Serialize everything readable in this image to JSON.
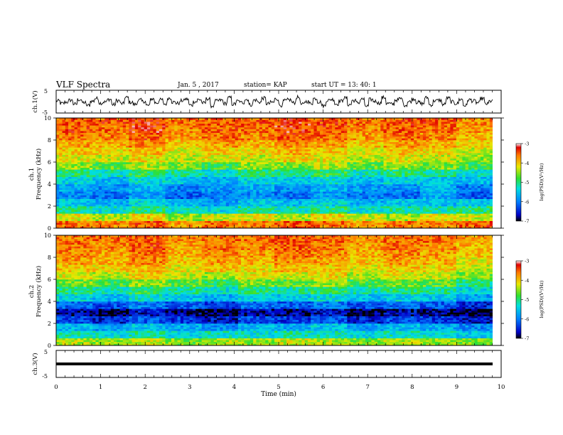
{
  "header": {
    "title": "VLF Spectra",
    "date": "Jan. 5 , 2017",
    "station": "station= KAP",
    "start": "start  UT =   13: 40: 1"
  },
  "colorbar": {
    "label": "log(PSD)(V²/Hz)",
    "ticks": [
      "-3",
      "-4",
      "-5",
      "-6",
      "-7"
    ]
  },
  "chart_data": [
    {
      "type": "line",
      "name": "ch1-waveform",
      "ylabel": "ch.1(V)",
      "ylim": [
        -5,
        5
      ],
      "yticks": [
        "5",
        "-5"
      ],
      "xlim": [
        0,
        10
      ],
      "x_unit": "min",
      "stroke": "#000000",
      "samples": [
        0.3,
        -0.8,
        -0.2,
        0.6,
        -1.1,
        0.9,
        -0.4,
        -1.6,
        0.2,
        1.4,
        -0.6,
        -0.1,
        1.0,
        -1.3,
        0.5,
        -0.9,
        1.8,
        -0.3,
        -1.2,
        0.7,
        0.1,
        -1.7,
        1.2,
        -0.5,
        0.8,
        -1.0,
        1.6,
        -0.2,
        -0.7,
        0.4,
        1.1,
        -1.5,
        0.0,
        0.9,
        -0.6,
        1.3,
        -1.9,
        0.3,
        0.6,
        -0.8,
        1.7,
        -1.1,
        0.2,
        -0.4,
        1.0,
        -1.4,
        0.7,
        -0.2,
        1.5,
        -0.9,
        -0.3,
        1.2,
        -1.6,
        0.4,
        0.8,
        -0.5,
        1.9,
        -1.2,
        0.1,
        -0.7,
        1.4,
        -0.1,
        -1.8,
        0.6,
        1.0,
        -1.0,
        0.3,
        1.6,
        -1.3,
        0.5,
        -0.4,
        1.1,
        -2.0,
        0.9,
        0.2,
        -0.6,
        1.8,
        -0.8,
        -1.1,
        0.7,
        1.3,
        -1.5,
        0.0,
        1.2,
        -0.3,
        -0.9,
        1.7,
        -1.4,
        0.4,
        0.6,
        -1.2,
        1.5,
        -0.1,
        -0.8,
        1.0,
        -1.7,
        0.8,
        0.3,
        -0.5,
        1.4,
        -1.0,
        0.2
      ]
    },
    {
      "type": "heatmap",
      "name": "ch1-spectrogram",
      "ylabel": "ch.1 Frequency (kHz)",
      "ylim": [
        0,
        10
      ],
      "yticks": [
        "0",
        "2",
        "4",
        "6",
        "8",
        "10"
      ],
      "xlim": [
        0,
        10
      ],
      "zlabel": "log(PSD)(V²/Hz)",
      "zlim": [
        -7,
        -3
      ],
      "rows_low_to_high_freq": [
        [
          -3.6,
          -3.7,
          -3.5,
          -3.8,
          -3.6,
          -3.7,
          -3.5,
          -3.6,
          -3.8,
          -3.6,
          -3.7,
          -3.5
        ],
        [
          -4.2,
          -4.4,
          -4.1,
          -4.5,
          -4.3,
          -4.2,
          -4.4,
          -4.1,
          -4.3,
          -4.5,
          -4.2,
          -4.3
        ],
        [
          -5.1,
          -5.3,
          -5.0,
          -5.2,
          -5.4,
          -5.1,
          -5.2,
          -5.0,
          -5.3,
          -5.1,
          -5.2,
          -5.0
        ],
        [
          -5.5,
          -5.7,
          -5.4,
          -5.6,
          -5.8,
          -5.5,
          -5.6,
          -5.4,
          -5.7,
          -5.5,
          -5.6,
          -5.5
        ],
        [
          -5.9,
          -6.1,
          -5.8,
          -6.2,
          -6.0,
          -5.9,
          -6.1,
          -5.8,
          -6.0,
          -6.1,
          -5.7,
          -6.2
        ],
        [
          -5.7,
          -5.9,
          -5.6,
          -6.0,
          -5.8,
          -5.7,
          -5.9,
          -5.6,
          -5.8,
          -5.9,
          -5.6,
          -6.0
        ],
        [
          -5.4,
          -5.6,
          -5.3,
          -5.5,
          -5.7,
          -5.4,
          -5.5,
          -5.3,
          -5.6,
          -5.4,
          -5.5,
          -5.6
        ],
        [
          -5.0,
          -5.2,
          -4.9,
          -5.1,
          -5.3,
          -5.0,
          -5.1,
          -4.9,
          -5.2,
          -5.0,
          -5.1,
          -5.3
        ],
        [
          -4.5,
          -4.7,
          -4.4,
          -4.6,
          -4.8,
          -4.5,
          -4.6,
          -4.4,
          -4.7,
          -4.5,
          -4.6,
          -4.8
        ],
        [
          -4.2,
          -4.3,
          -4.1,
          -4.4,
          -4.2,
          -4.3,
          -4.1,
          -4.2,
          -4.4,
          -4.2,
          -4.3,
          -4.5
        ],
        [
          -4.0,
          -4.1,
          -3.9,
          -4.2,
          -4.0,
          -4.1,
          -3.9,
          -4.0,
          -4.2,
          -4.0,
          -4.1,
          -4.3
        ],
        [
          -3.8,
          -3.9,
          -3.7,
          -4.0,
          -3.8,
          -3.9,
          -3.7,
          -3.8,
          -4.0,
          -3.8,
          -3.9,
          -4.1
        ],
        [
          -3.6,
          -3.7,
          -3.5,
          -3.8,
          -3.6,
          -3.7,
          -3.5,
          -3.6,
          -3.8,
          -3.6,
          -3.7,
          -3.9
        ],
        [
          -3.5,
          -3.6,
          -3.4,
          -3.7,
          -3.5,
          -3.6,
          -3.4,
          -3.5,
          -3.7,
          -3.5,
          -3.6,
          -3.8
        ],
        [
          -3.5,
          -3.5,
          -3.4,
          -3.6,
          -3.5,
          -3.5,
          -3.4,
          -3.5,
          -3.6,
          -3.5,
          -3.5,
          -3.7
        ]
      ]
    },
    {
      "type": "heatmap",
      "name": "ch2-spectrogram",
      "ylabel": "ch.2 Frequency (kHz)",
      "ylim": [
        0,
        10
      ],
      "yticks": [
        "0",
        "2",
        "4",
        "6",
        "8",
        "10"
      ],
      "xlim": [
        0,
        10
      ],
      "zlabel": "log(PSD)(V²/Hz)",
      "zlim": [
        -7,
        -3
      ],
      "rows_low_to_high_freq": [
        [
          -4.4,
          -4.5,
          -4.3,
          -4.6,
          -4.4,
          -4.5,
          -4.3,
          -4.4,
          -4.6,
          -4.4,
          -4.5,
          -4.6
        ],
        [
          -5.2,
          -5.3,
          -5.1,
          -5.4,
          -5.2,
          -5.3,
          -5.1,
          -5.2,
          -5.4,
          -5.2,
          -5.3,
          -5.5
        ],
        [
          -5.6,
          -5.8,
          -5.5,
          -5.7,
          -5.9,
          -5.6,
          -5.7,
          -5.5,
          -5.8,
          -5.6,
          -5.7,
          -5.9
        ],
        [
          -6.3,
          -6.5,
          -6.2,
          -6.4,
          -6.6,
          -6.3,
          -6.4,
          -6.2,
          -6.5,
          -6.3,
          -6.4,
          -6.6
        ],
        [
          -6.7,
          -6.9,
          -6.6,
          -6.8,
          -7.0,
          -6.7,
          -6.8,
          -6.6,
          -6.9,
          -6.7,
          -6.8,
          -7.0
        ],
        [
          -6.1,
          -6.3,
          -6.0,
          -6.2,
          -6.4,
          -6.1,
          -6.2,
          -6.0,
          -6.3,
          -6.1,
          -6.2,
          -6.5
        ],
        [
          -5.4,
          -5.6,
          -5.3,
          -5.5,
          -5.7,
          -5.4,
          -5.5,
          -5.3,
          -5.6,
          -5.4,
          -5.5,
          -5.8
        ],
        [
          -5.0,
          -5.2,
          -4.9,
          -5.1,
          -5.3,
          -5.0,
          -5.1,
          -4.9,
          -5.2,
          -5.0,
          -5.1,
          -5.4
        ],
        [
          -4.6,
          -4.8,
          -4.5,
          -4.7,
          -4.9,
          -4.6,
          -4.7,
          -4.5,
          -4.8,
          -4.6,
          -4.7,
          -5.0
        ],
        [
          -4.2,
          -4.4,
          -4.1,
          -4.3,
          -4.5,
          -4.2,
          -4.3,
          -4.1,
          -4.4,
          -4.2,
          -4.3,
          -4.6
        ],
        [
          -4.0,
          -4.1,
          -3.9,
          -4.2,
          -4.0,
          -4.1,
          -3.9,
          -4.0,
          -4.2,
          -4.0,
          -4.1,
          -4.4
        ],
        [
          -3.8,
          -3.9,
          -3.7,
          -4.0,
          -3.8,
          -3.9,
          -3.7,
          -3.8,
          -4.0,
          -3.8,
          -3.9,
          -4.2
        ],
        [
          -3.7,
          -3.8,
          -3.6,
          -3.9,
          -3.7,
          -3.8,
          -3.6,
          -3.7,
          -3.9,
          -3.7,
          -3.8,
          -4.0
        ],
        [
          -3.6,
          -3.7,
          -3.5,
          -3.8,
          -3.6,
          -3.7,
          -3.5,
          -3.6,
          -3.8,
          -3.6,
          -3.7,
          -3.9
        ],
        [
          -3.6,
          -3.6,
          -3.5,
          -3.7,
          -3.6,
          -3.6,
          -3.5,
          -3.6,
          -3.7,
          -3.6,
          -3.6,
          -3.8
        ]
      ]
    },
    {
      "type": "line",
      "name": "ch3-waveform",
      "ylabel": "ch.3(V)",
      "ylim": [
        -5,
        5
      ],
      "yticks": [
        "5",
        "-5"
      ],
      "xlim": [
        0,
        10
      ],
      "xlabel": "Time (min)",
      "xticks": [
        "0",
        "1",
        "2",
        "3",
        "4",
        "5",
        "6",
        "7",
        "8",
        "9",
        "10"
      ],
      "constant_value": 0,
      "stroke": "#000000"
    }
  ]
}
